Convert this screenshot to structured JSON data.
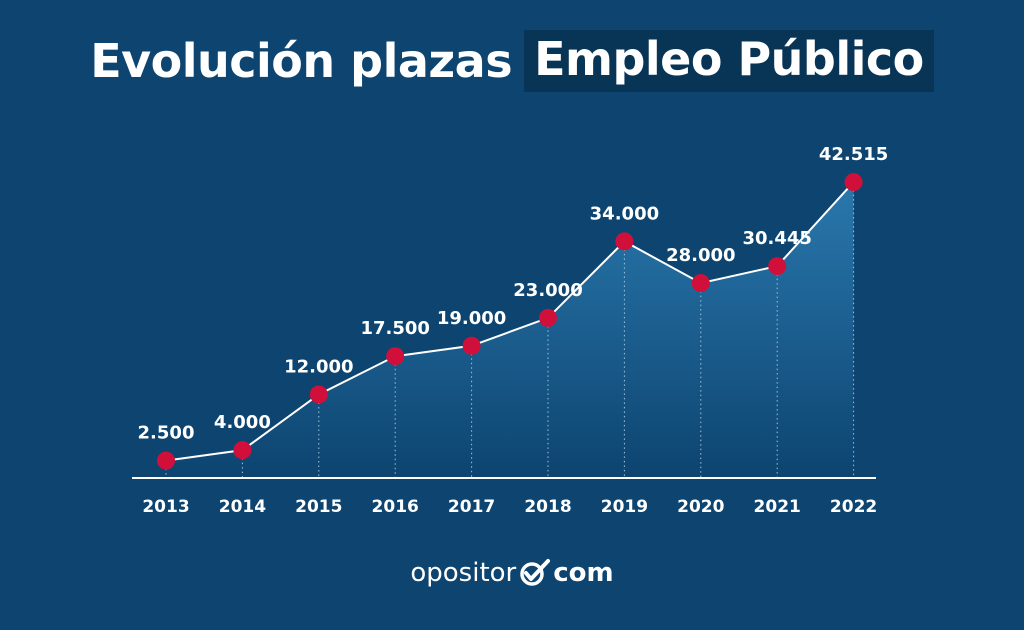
{
  "title": {
    "part1": "Evolución plazas",
    "part2": "Empleo Público"
  },
  "chart_data": {
    "type": "area",
    "title": "Evolución plazas Empleo Público",
    "xlabel": "",
    "ylabel": "",
    "categories": [
      "2013",
      "2014",
      "2015",
      "2016",
      "2017",
      "2018",
      "2019",
      "2020",
      "2021",
      "2022"
    ],
    "series": [
      {
        "values": [
          2500,
          4000,
          12000,
          17500,
          19000,
          23000,
          34000,
          28000,
          30445,
          42515
        ],
        "labels": [
          "2.500",
          "4.000",
          "12.000",
          "17.500",
          "19.000",
          "23.000",
          "34.000",
          "28.000",
          "30.445",
          "42.515"
        ]
      }
    ],
    "ylim": [
      0,
      45000
    ],
    "grid": false,
    "colors": {
      "background": "#0d4470",
      "line": "#ffffff",
      "marker": "#d0103a",
      "area_top": "#2a78ad",
      "area_bottom": "#0d4470"
    }
  },
  "logo": {
    "text_left": "opositor",
    "text_right": "com",
    "icon": "check-mark-icon"
  }
}
